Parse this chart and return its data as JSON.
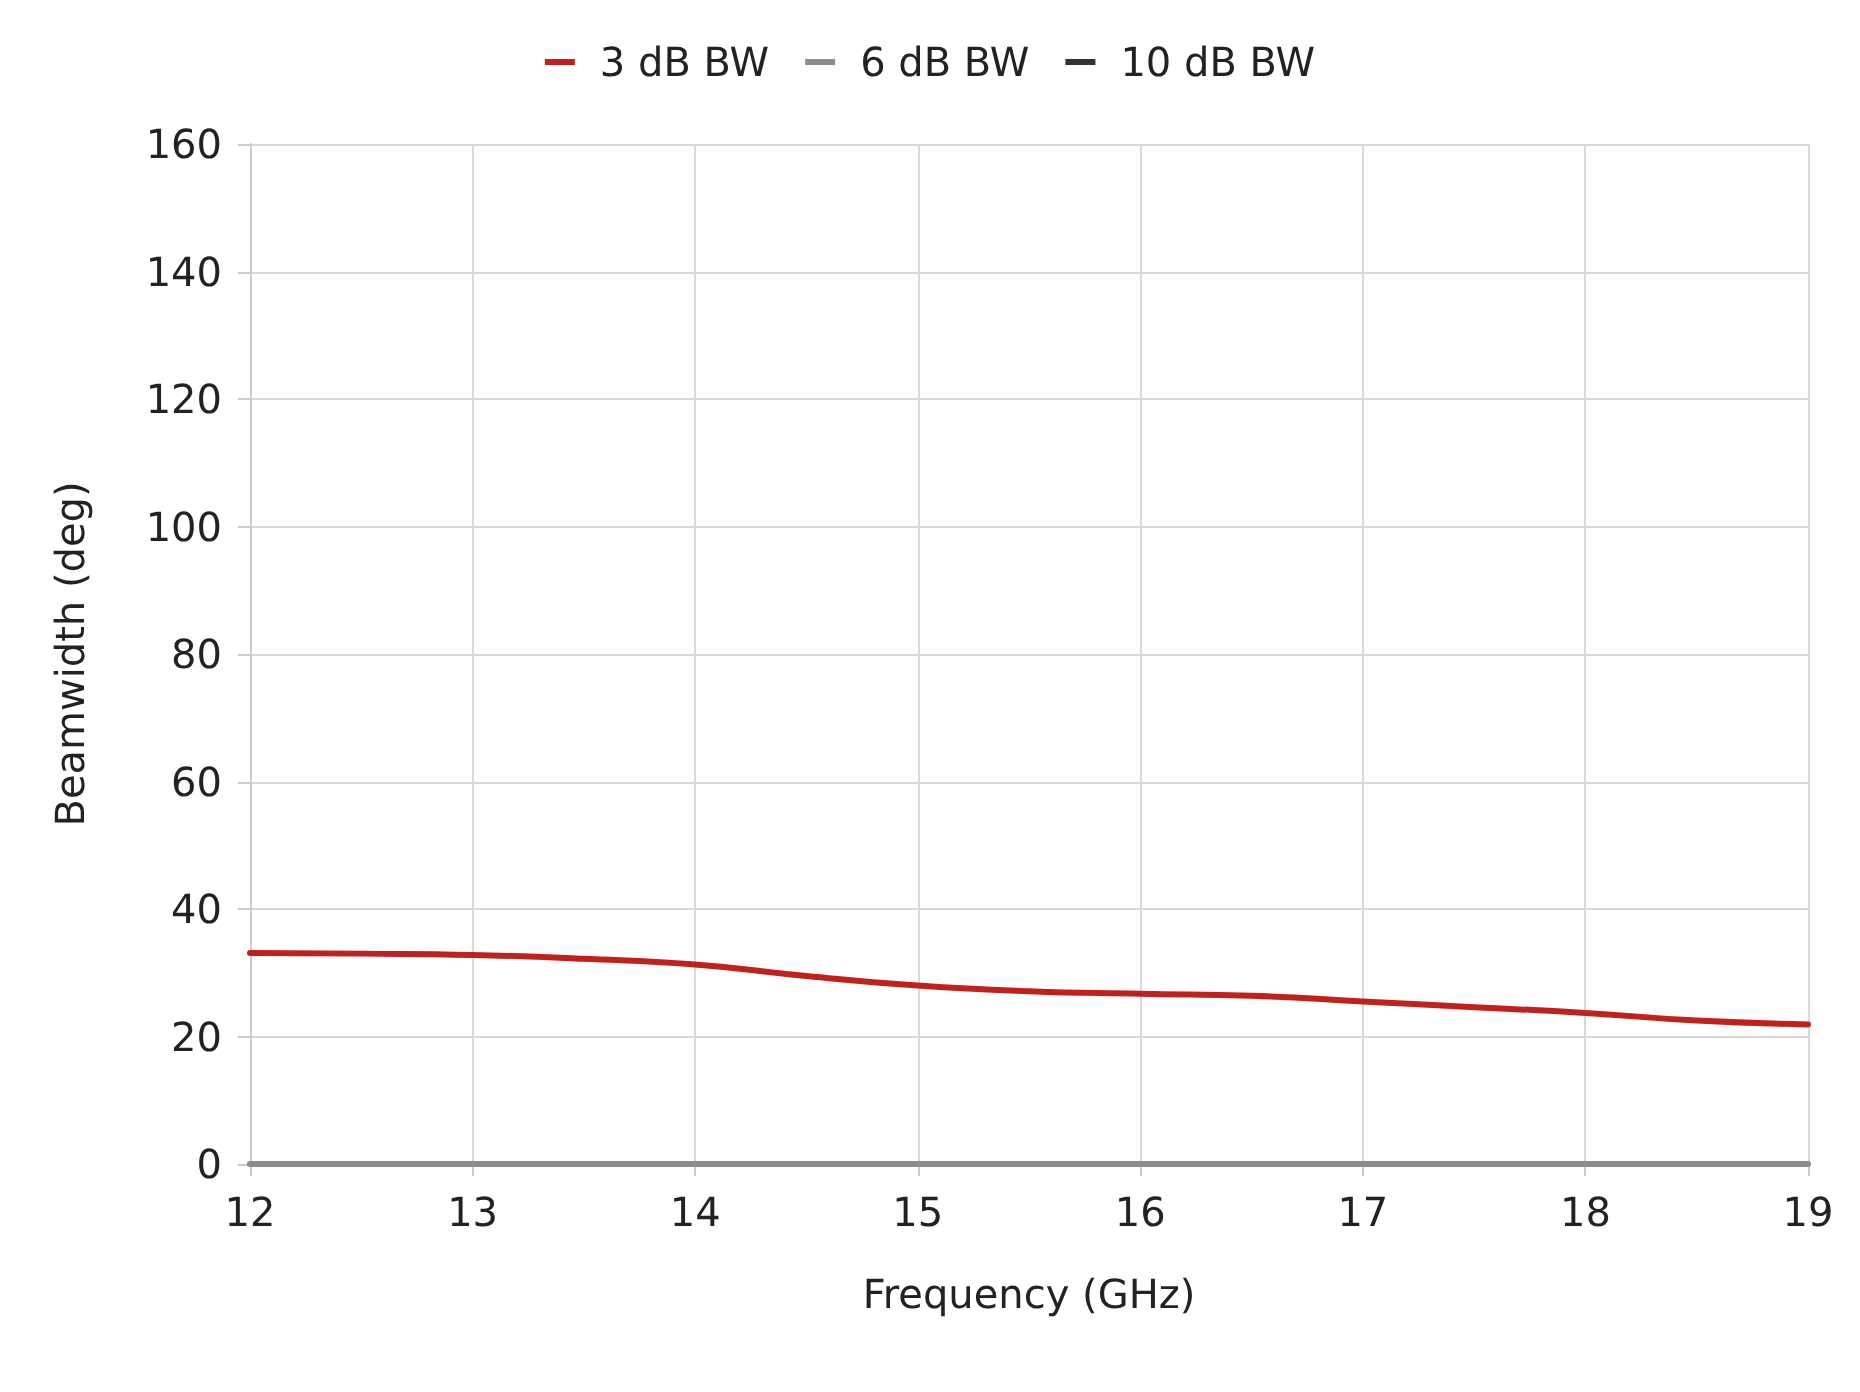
{
  "chart_data": {
    "type": "line",
    "xlabel": "Frequency (GHz)",
    "ylabel": "Beamwidth (deg)",
    "x": [
      12,
      12.5,
      13,
      13.5,
      14,
      14.5,
      15,
      15.5,
      16,
      16.5,
      17,
      17.5,
      18,
      18.5,
      19
    ],
    "xlim": [
      12,
      19
    ],
    "xticks": [
      12,
      13,
      14,
      15,
      16,
      17,
      18,
      19
    ],
    "ylim": [
      0,
      160
    ],
    "yticks": [
      0,
      20,
      40,
      60,
      80,
      100,
      120,
      140,
      160
    ],
    "grid": true,
    "legend": "top",
    "marker": "none",
    "line_style": "solid",
    "series": [
      {
        "name": "3 dB BW",
        "color": "#c0211f",
        "values": [
          33.1,
          33.0,
          32.8,
          32.2,
          31.3,
          29.5,
          28.0,
          27.1,
          26.7,
          26.4,
          25.5,
          24.6,
          23.7,
          22.5,
          21.9
        ]
      },
      {
        "name": "6 dB BW",
        "color": "#8c8c8c",
        "values": [
          0,
          0,
          0,
          0,
          0,
          0,
          0,
          0,
          0,
          0,
          0,
          0,
          0,
          0,
          0
        ]
      },
      {
        "name": "10 dB BW",
        "color": "#333333",
        "values": [
          null,
          null,
          null,
          null,
          null,
          null,
          null,
          null,
          null,
          null,
          null,
          null,
          null,
          null,
          null
        ]
      }
    ]
  }
}
